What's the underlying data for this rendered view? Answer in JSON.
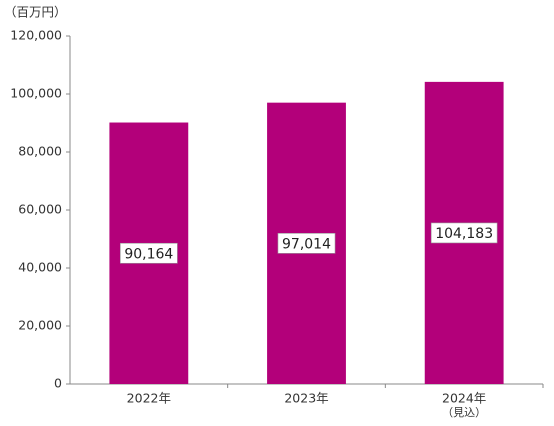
{
  "chart_data": {
    "type": "bar",
    "unit_label": "（百万円）",
    "categories": [
      "2022年",
      "2023年",
      "2024年"
    ],
    "category_note": "（見込）",
    "values": [
      90164,
      97014,
      104183
    ],
    "value_labels": [
      "90,164",
      "97,014",
      "104,183"
    ],
    "color": "#b3007a",
    "ylim": [
      0,
      120000
    ],
    "yticks": [
      0,
      {
        "value": 20000,
        "label": "20,000"
      },
      {
        "value": 40000,
        "label": "40,000"
      },
      {
        "value": 60000,
        "label": "60,000"
      },
      {
        "value": 80000,
        "label": "80,000"
      },
      {
        "value": 100000,
        "label": "100,000"
      },
      {
        "value": 120000,
        "label": "120,000"
      }
    ],
    "grid": false
  }
}
